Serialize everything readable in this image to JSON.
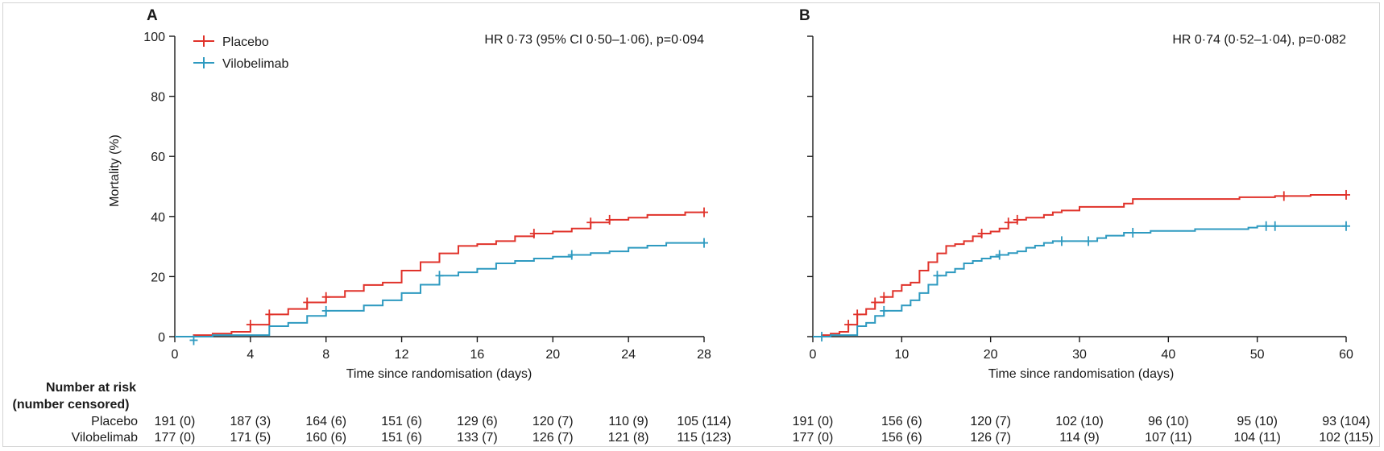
{
  "colors": {
    "placebo": "#e0322a",
    "vilobelimab": "#2e9ac0",
    "axis": "#1a1a1a"
  },
  "legend": [
    {
      "key": "placebo",
      "label": "Placebo"
    },
    {
      "key": "vilobelimab",
      "label": "Vilobelimab"
    }
  ],
  "risk_table": {
    "header_line1": "Number at risk",
    "header_line2": "(number censored)",
    "row_labels": [
      "Placebo",
      "Vilobelimab"
    ]
  },
  "chart_data": [
    {
      "type": "line",
      "panel": "A",
      "annotation": "HR 0·73 (95% CI 0·50–1·06), p=0·094",
      "xlabel": "Time since randomisation (days)",
      "ylabel": "Mortality (%)",
      "xlim": [
        0,
        28
      ],
      "ylim": [
        0,
        100
      ],
      "xticks": [
        0,
        4,
        8,
        12,
        16,
        20,
        24,
        28
      ],
      "yticks": [
        0,
        20,
        40,
        60,
        80,
        100
      ],
      "series": [
        {
          "name": "Placebo",
          "key": "placebo",
          "steps": [
            [
              0,
              0
            ],
            [
              1,
              0.5
            ],
            [
              2,
              1
            ],
            [
              3,
              1.6
            ],
            [
              4,
              4
            ],
            [
              5,
              7.4
            ],
            [
              6,
              9.2
            ],
            [
              7,
              11.4
            ],
            [
              8,
              13.2
            ],
            [
              9,
              15.2
            ],
            [
              10,
              17.2
            ],
            [
              11,
              18
            ],
            [
              12,
              22
            ],
            [
              13,
              24.8
            ],
            [
              14,
              27.7
            ],
            [
              15,
              30.2
            ],
            [
              16,
              30.8
            ],
            [
              17,
              31.8
            ],
            [
              18,
              33.4
            ],
            [
              19,
              34.3
            ],
            [
              20,
              35
            ],
            [
              21,
              36
            ],
            [
              22,
              38
            ],
            [
              23,
              38.9
            ],
            [
              24,
              39.6
            ],
            [
              25,
              40.5
            ],
            [
              27,
              41.4
            ],
            [
              28,
              41.4
            ]
          ],
          "censored": [
            [
              4,
              4
            ],
            [
              5,
              7.4
            ],
            [
              7,
              11.4
            ],
            [
              8,
              13.2
            ],
            [
              19,
              34.3
            ],
            [
              22,
              38
            ],
            [
              23,
              38.9
            ],
            [
              28,
              41.4
            ]
          ]
        },
        {
          "name": "Vilobelimab",
          "key": "vilobelimab",
          "steps": [
            [
              0,
              0
            ],
            [
              2,
              0.5
            ],
            [
              5,
              3.5
            ],
            [
              6,
              4.6
            ],
            [
              7,
              6.9
            ],
            [
              8,
              8.6
            ],
            [
              10,
              10.4
            ],
            [
              11,
              12.1
            ],
            [
              12,
              14.5
            ],
            [
              13,
              17.3
            ],
            [
              14,
              20.3
            ],
            [
              15,
              21.4
            ],
            [
              16,
              22.6
            ],
            [
              17,
              24.4
            ],
            [
              18,
              25.2
            ],
            [
              19,
              26
            ],
            [
              20,
              26.6
            ],
            [
              21,
              27.2
            ],
            [
              22,
              27.8
            ],
            [
              23,
              28.4
            ],
            [
              24,
              29.6
            ],
            [
              25,
              30.3
            ],
            [
              26,
              31.2
            ],
            [
              28,
              31.2
            ]
          ],
          "censored": [
            [
              1,
              -1.2
            ],
            [
              8,
              8.6
            ],
            [
              14,
              20.3
            ],
            [
              21,
              27.2
            ],
            [
              28,
              31.2
            ]
          ]
        }
      ],
      "risk": {
        "times": [
          0,
          4,
          8,
          12,
          16,
          20,
          24,
          28
        ],
        "placebo": [
          "191 (0)",
          "187 (3)",
          "164 (6)",
          "151 (6)",
          "129 (6)",
          "120 (7)",
          "110 (9)",
          "105 (114)"
        ],
        "vilobelimab": [
          "177 (0)",
          "171 (5)",
          "160 (6)",
          "151 (6)",
          "133 (7)",
          "126 (7)",
          "121 (8)",
          "115 (123)"
        ]
      }
    },
    {
      "type": "line",
      "panel": "B",
      "annotation": "HR 0·74 (0·52–1·04), p=0·082",
      "xlabel": "Time since randomisation (days)",
      "ylabel": "",
      "xlim": [
        0,
        60
      ],
      "ylim": [
        0,
        100
      ],
      "xticks": [
        0,
        10,
        20,
        30,
        40,
        50,
        60
      ],
      "yticks": [
        0,
        20,
        40,
        60,
        80,
        100
      ],
      "series": [
        {
          "name": "Placebo",
          "key": "placebo",
          "steps": [
            [
              0,
              0
            ],
            [
              1,
              0.5
            ],
            [
              2,
              1
            ],
            [
              3,
              1.6
            ],
            [
              4,
              4
            ],
            [
              5,
              7.4
            ],
            [
              6,
              9.2
            ],
            [
              7,
              11.4
            ],
            [
              8,
              13.2
            ],
            [
              9,
              15.2
            ],
            [
              10,
              17.2
            ],
            [
              11,
              18
            ],
            [
              12,
              22
            ],
            [
              13,
              24.8
            ],
            [
              14,
              27.7
            ],
            [
              15,
              30.2
            ],
            [
              16,
              30.8
            ],
            [
              17,
              31.8
            ],
            [
              18,
              33.4
            ],
            [
              19,
              34.3
            ],
            [
              20,
              35
            ],
            [
              21,
              36
            ],
            [
              22,
              38
            ],
            [
              23,
              38.9
            ],
            [
              24,
              39.6
            ],
            [
              26,
              40.5
            ],
            [
              27,
              41.4
            ],
            [
              28,
              42
            ],
            [
              30,
              43.2
            ],
            [
              35,
              44.3
            ],
            [
              36,
              45.8
            ],
            [
              48,
              46.4
            ],
            [
              52,
              46.8
            ],
            [
              56,
              47.2
            ],
            [
              60,
              47.2
            ]
          ],
          "censored": [
            [
              4,
              4
            ],
            [
              5,
              7.4
            ],
            [
              7,
              11.4
            ],
            [
              8,
              13.2
            ],
            [
              19,
              34.3
            ],
            [
              22,
              38
            ],
            [
              23,
              38.9
            ],
            [
              53,
              46.8
            ],
            [
              60,
              47.2
            ]
          ]
        },
        {
          "name": "Vilobelimab",
          "key": "vilobelimab",
          "steps": [
            [
              0,
              0
            ],
            [
              2,
              0.5
            ],
            [
              5,
              3.5
            ],
            [
              6,
              4.6
            ],
            [
              7,
              6.9
            ],
            [
              8,
              8.6
            ],
            [
              10,
              10.4
            ],
            [
              11,
              12.1
            ],
            [
              12,
              14.5
            ],
            [
              13,
              17.3
            ],
            [
              14,
              20.3
            ],
            [
              15,
              21.4
            ],
            [
              16,
              22.6
            ],
            [
              17,
              24.4
            ],
            [
              18,
              25.2
            ],
            [
              19,
              26
            ],
            [
              20,
              26.6
            ],
            [
              21,
              27.2
            ],
            [
              22,
              27.8
            ],
            [
              23,
              28.4
            ],
            [
              24,
              29.6
            ],
            [
              25,
              30.3
            ],
            [
              26,
              31.2
            ],
            [
              27,
              31.8
            ],
            [
              32,
              32.8
            ],
            [
              33,
              33.6
            ],
            [
              35,
              34.6
            ],
            [
              38,
              35.2
            ],
            [
              43,
              35.8
            ],
            [
              49,
              36.3
            ],
            [
              50,
              36.8
            ],
            [
              60,
              36.8
            ]
          ],
          "censored": [
            [
              1,
              0
            ],
            [
              8,
              8.6
            ],
            [
              14,
              20.3
            ],
            [
              21,
              27.2
            ],
            [
              28,
              31.8
            ],
            [
              31,
              31.8
            ],
            [
              36,
              34.6
            ],
            [
              51,
              36.8
            ],
            [
              52,
              36.8
            ],
            [
              60,
              36.8
            ]
          ]
        }
      ],
      "risk": {
        "times": [
          0,
          10,
          20,
          30,
          40,
          50,
          60
        ],
        "placebo": [
          "191 (0)",
          "156 (6)",
          "120 (7)",
          "102 (10)",
          "96 (10)",
          "95 (10)",
          "93 (104)"
        ],
        "vilobelimab": [
          "177 (0)",
          "156 (6)",
          "126 (7)",
          "114 (9)",
          "107 (11)",
          "104 (11)",
          "102 (115)"
        ]
      }
    }
  ]
}
